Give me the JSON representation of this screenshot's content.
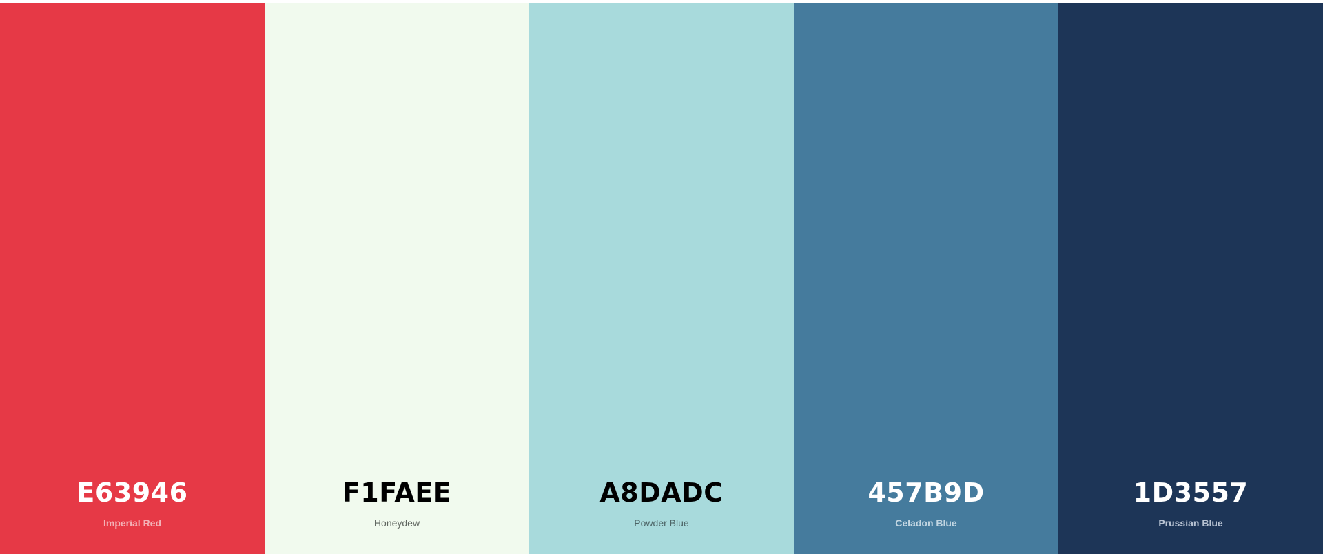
{
  "swatches": [
    {
      "hex_label": "E63946",
      "name": "Imperial Red",
      "color": "#E63946",
      "hex_text_color": "#ffffff",
      "name_text_color": "#f3b2b7",
      "name_weight": "bold"
    },
    {
      "hex_label": "F1FAEE",
      "name": "Honeydew",
      "color": "#F1FAEE",
      "hex_text_color": "#000000",
      "name_text_color": "#606660",
      "name_weight": "normal"
    },
    {
      "hex_label": "A8DADC",
      "name": "Powder Blue",
      "color": "#A8DADC",
      "hex_text_color": "#000000",
      "name_text_color": "#4d6466",
      "name_weight": "normal"
    },
    {
      "hex_label": "457B9D",
      "name": "Celadon Blue",
      "color": "#457B9D",
      "hex_text_color": "#ffffff",
      "name_text_color": "#c2d6e2",
      "name_weight": "bold"
    },
    {
      "hex_label": "1D3557",
      "name": "Prussian Blue",
      "color": "#1D3557",
      "hex_text_color": "#ffffff",
      "name_text_color": "#b8c3d3",
      "name_weight": "bold"
    }
  ]
}
